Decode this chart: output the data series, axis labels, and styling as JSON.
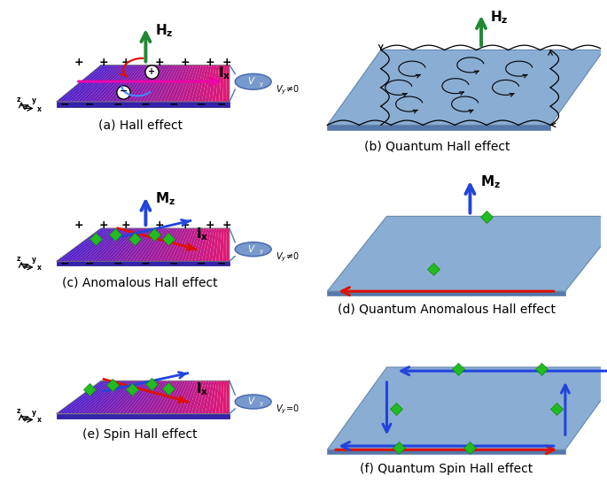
{
  "panels": [
    "(a) Hall effect",
    "(b) Quantum Hall effect",
    "(c) Anomalous Hall effect",
    "(d) Quantum Anomalous Hall effect",
    "(e) Spin Hall effect",
    "(f) Quantum Spin Hall effect"
  ],
  "bg_color": "#ffffff",
  "green_arrow": "#228833",
  "blue_arrow": "#2244DD",
  "red_arrow": "#DD1100",
  "magenta_arrow": "#EE00AA",
  "green_spin": "#22BB22",
  "blue_plate": "#8AADD4",
  "blue_plate_edge": "#6688AA",
  "blue_plate_side": "#5577AA",
  "label_fontsize": 10
}
